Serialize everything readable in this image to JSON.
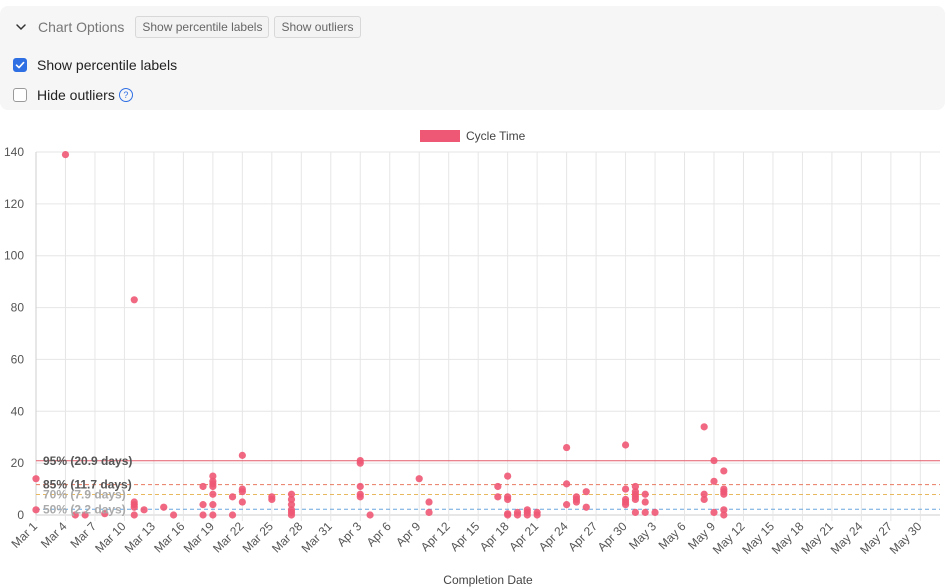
{
  "options": {
    "title": "Chart Options",
    "pills": [
      "Show percentile labels",
      "Show outliers"
    ],
    "show_percentile_label": "Show percentile labels",
    "hide_outliers_label": "Hide outliers",
    "help_glyph": "?"
  },
  "chart_data": {
    "type": "scatter",
    "legend": "Cycle Time",
    "legend_placement": "top-center",
    "xlabel": "Completion Date",
    "ylabel": "",
    "grid": true,
    "ylim": [
      0,
      140
    ],
    "yticks": [
      0,
      20,
      40,
      60,
      80,
      100,
      120,
      140
    ],
    "xlim": [
      "Mar 1",
      "Jun 1"
    ],
    "xticks": [
      "Mar 1",
      "Mar 4",
      "Mar 7",
      "Mar 10",
      "Mar 13",
      "Mar 16",
      "Mar 19",
      "Mar 22",
      "Mar 25",
      "Mar 28",
      "Mar 31",
      "Apr 3",
      "Apr 6",
      "Apr 9",
      "Apr 12",
      "Apr 15",
      "Apr 18",
      "Apr 21",
      "Apr 24",
      "Apr 27",
      "Apr 30",
      "May 3",
      "May 6",
      "May 9",
      "May 12",
      "May 15",
      "May 18",
      "May 21",
      "May 24",
      "May 27",
      "May 30"
    ],
    "percentiles": [
      {
        "label": "95% (20.9 days)",
        "value": 20.9,
        "color": "#e35d6a"
      },
      {
        "label": "85% (11.7 days)",
        "value": 11.7,
        "color": "#e8795f"
      },
      {
        "label": "70% (7.9 days)",
        "value": 7.9,
        "color": "#e8b85f"
      },
      {
        "label": "50% (2.2 days)",
        "value": 2.2,
        "color": "#69a6de"
      }
    ],
    "point_color": "#ee5874",
    "points": [
      [
        "Mar 1",
        14
      ],
      [
        "Mar 1",
        2
      ],
      [
        "Mar 4",
        139
      ],
      [
        "Mar 5",
        0
      ],
      [
        "Mar 6",
        0
      ],
      [
        "Mar 8",
        0.5
      ],
      [
        "Mar 11",
        5
      ],
      [
        "Mar 11",
        4
      ],
      [
        "Mar 11",
        3
      ],
      [
        "Mar 11",
        0
      ],
      [
        "Mar 11",
        83
      ],
      [
        "Mar 12",
        2
      ],
      [
        "Mar 14",
        3
      ],
      [
        "Mar 15",
        0
      ],
      [
        "Mar 18",
        11
      ],
      [
        "Mar 18",
        0
      ],
      [
        "Mar 18",
        4
      ],
      [
        "Mar 19",
        15
      ],
      [
        "Mar 19",
        13
      ],
      [
        "Mar 19",
        12
      ],
      [
        "Mar 19",
        11
      ],
      [
        "Mar 19",
        8
      ],
      [
        "Mar 19",
        4
      ],
      [
        "Mar 19",
        0
      ],
      [
        "Mar 21",
        7
      ],
      [
        "Mar 21",
        0
      ],
      [
        "Mar 22",
        23
      ],
      [
        "Mar 22",
        10
      ],
      [
        "Mar 22",
        9
      ],
      [
        "Mar 22",
        5
      ],
      [
        "Mar 25",
        7
      ],
      [
        "Mar 25",
        6
      ],
      [
        "Mar 27",
        8
      ],
      [
        "Mar 27",
        6
      ],
      [
        "Mar 27",
        4
      ],
      [
        "Mar 27",
        2
      ],
      [
        "Mar 27",
        1
      ],
      [
        "Mar 27",
        0
      ],
      [
        "Apr 3",
        21
      ],
      [
        "Apr 3",
        11
      ],
      [
        "Apr 3",
        8
      ],
      [
        "Apr 3",
        7
      ],
      [
        "Apr 3",
        20
      ],
      [
        "Apr 4",
        0
      ],
      [
        "Apr 9",
        14
      ],
      [
        "Apr 10",
        5
      ],
      [
        "Apr 10",
        1
      ],
      [
        "Apr 17",
        11
      ],
      [
        "Apr 17",
        7
      ],
      [
        "Apr 18",
        15
      ],
      [
        "Apr 18",
        7
      ],
      [
        "Apr 18",
        6
      ],
      [
        "Apr 18",
        0.5
      ],
      [
        "Apr 18",
        0
      ],
      [
        "Apr 19",
        1
      ],
      [
        "Apr 19",
        0
      ],
      [
        "Apr 20",
        2
      ],
      [
        "Apr 20",
        1
      ],
      [
        "Apr 20",
        0
      ],
      [
        "Apr 21",
        1
      ],
      [
        "Apr 21",
        0
      ],
      [
        "Apr 24",
        26
      ],
      [
        "Apr 24",
        4
      ],
      [
        "Apr 24",
        12
      ],
      [
        "Apr 25",
        6
      ],
      [
        "Apr 25",
        7
      ],
      [
        "Apr 25",
        5
      ],
      [
        "Apr 26",
        9
      ],
      [
        "Apr 26",
        3
      ],
      [
        "Apr 30",
        27
      ],
      [
        "Apr 30",
        10
      ],
      [
        "Apr 30",
        6
      ],
      [
        "Apr 30",
        5
      ],
      [
        "Apr 30",
        4
      ],
      [
        "May 1",
        11
      ],
      [
        "May 1",
        9
      ],
      [
        "May 1",
        8
      ],
      [
        "May 1",
        7
      ],
      [
        "May 1",
        6
      ],
      [
        "May 1",
        1
      ],
      [
        "May 2",
        8
      ],
      [
        "May 2",
        5
      ],
      [
        "May 2",
        1
      ],
      [
        "May 3",
        1
      ],
      [
        "May 8",
        34
      ],
      [
        "May 8",
        8
      ],
      [
        "May 8",
        6
      ],
      [
        "May 9",
        21
      ],
      [
        "May 9",
        13
      ],
      [
        "May 9",
        1
      ],
      [
        "May 10",
        17
      ],
      [
        "May 10",
        10
      ],
      [
        "May 10",
        9
      ],
      [
        "May 10",
        8
      ],
      [
        "May 10",
        2
      ],
      [
        "May 10",
        0
      ]
    ]
  }
}
